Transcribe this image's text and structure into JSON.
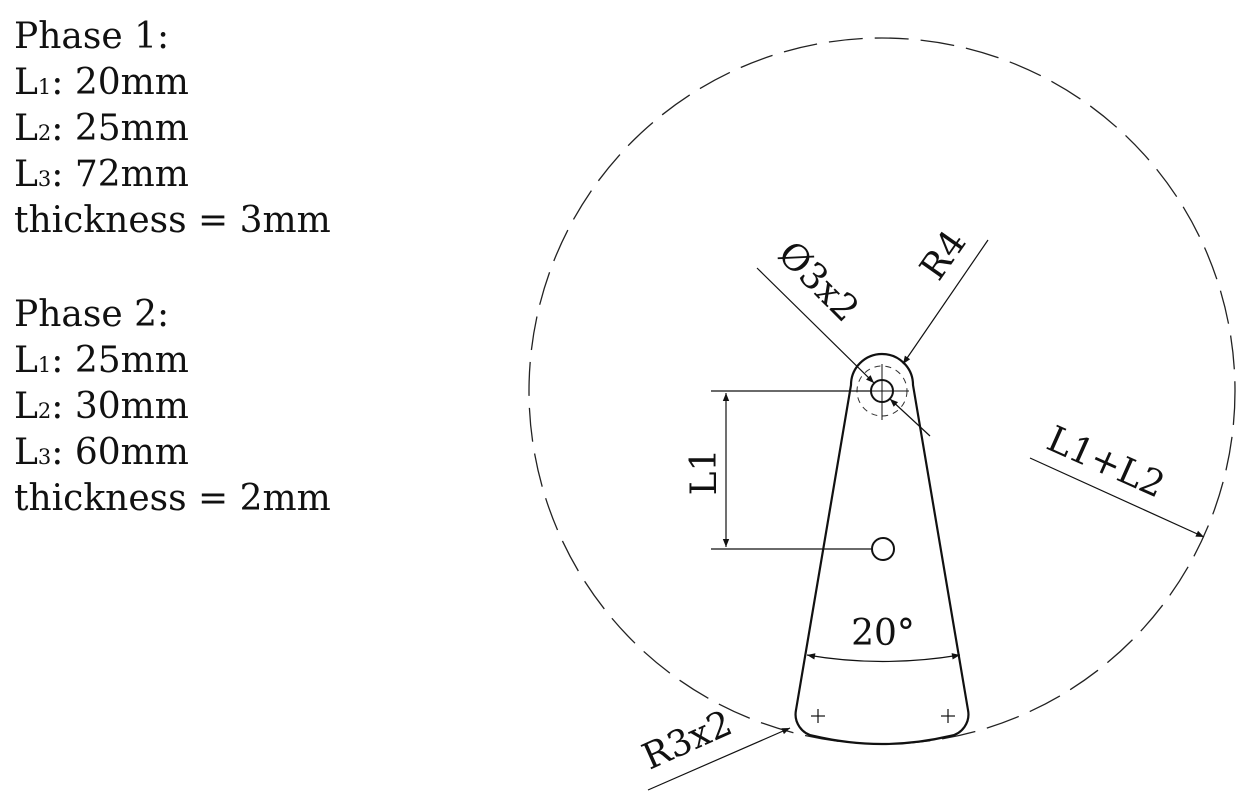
{
  "phases": [
    {
      "heading": "Phase 1:",
      "L1": {
        "name": "L",
        "sub": "1",
        "value": ": 20mm"
      },
      "L2": {
        "name": "L",
        "sub": "2",
        "value": ": 25mm"
      },
      "L3": {
        "name": "L",
        "sub": "3",
        "value": ": 72mm"
      },
      "thickness": "thickness = 3mm",
      "highlight_color": "#ffe600"
    },
    {
      "heading": "Phase 2:",
      "L1": {
        "name": "L",
        "sub": "1",
        "value": ": 25mm"
      },
      "L2": {
        "name": "L",
        "sub": "2",
        "value": ": 30mm"
      },
      "L3": {
        "name": "L",
        "sub": "3",
        "value": ": 60mm"
      },
      "thickness": "thickness = 2mm"
    }
  ],
  "drawing": {
    "dim_hole": "Ø3x2",
    "dim_top_radius": "R4",
    "dim_l1": "L1",
    "dim_outer_circle": "L1+L2",
    "dim_angle": "20°",
    "dim_corner_radius": "R3x2"
  }
}
